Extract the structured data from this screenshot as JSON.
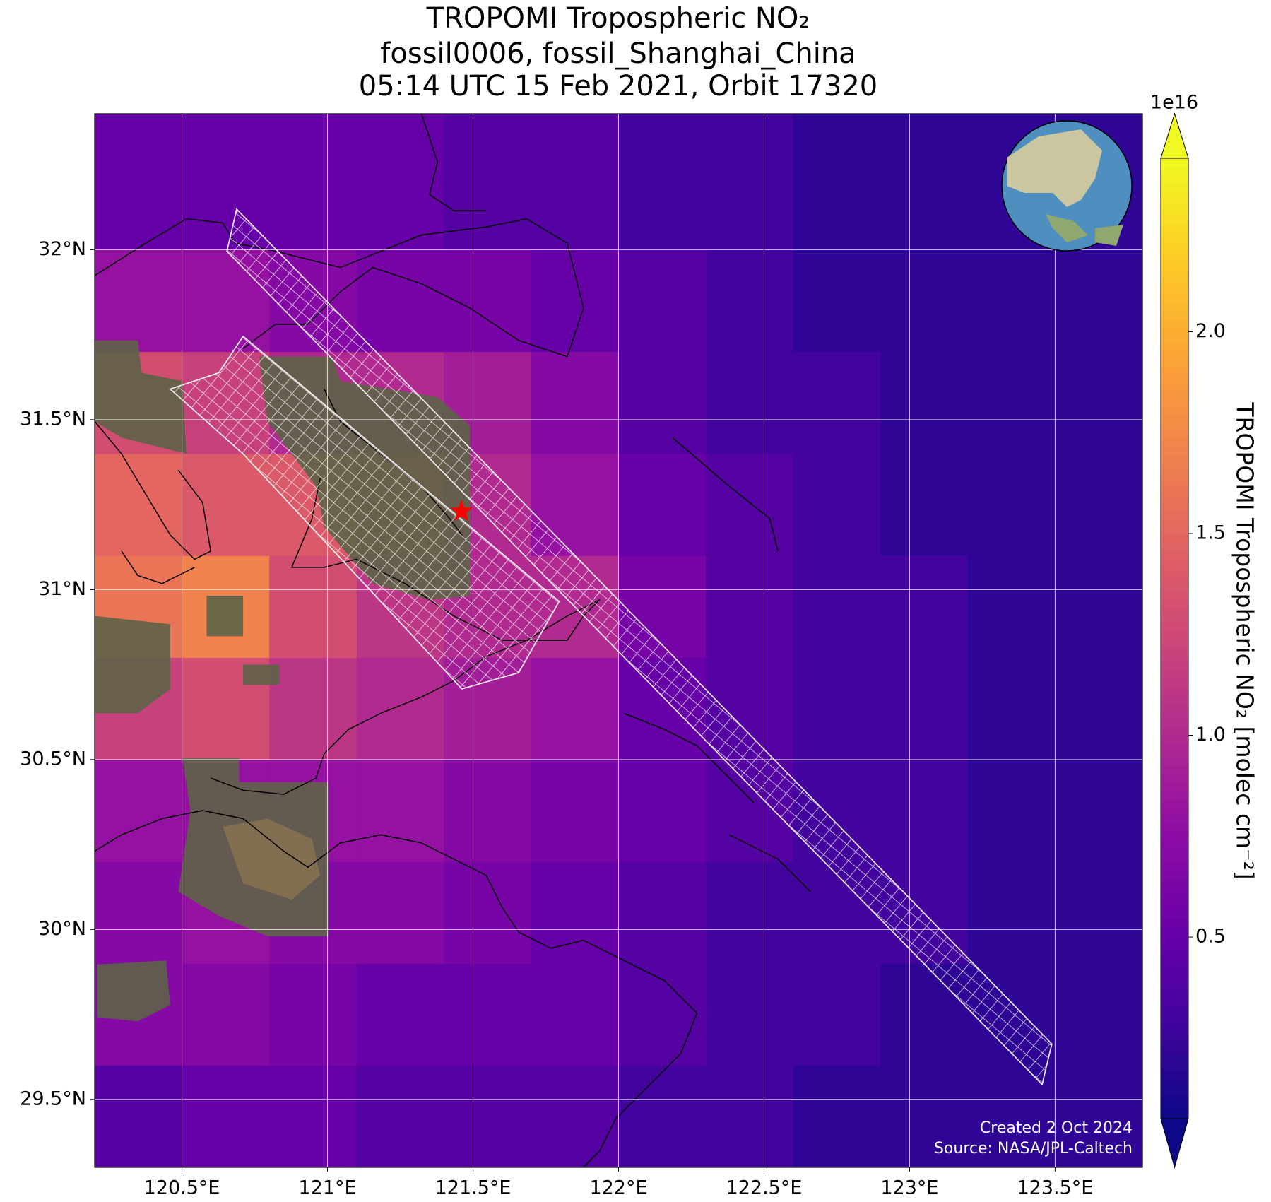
{
  "chart_data": {
    "type": "map",
    "title": [
      "TROPOMI Tropospheric NO₂",
      "fossil0006, fossil_Shanghai_China",
      "05:14 UTC 15 Feb 2021, Orbit 17320"
    ],
    "colormap": "plasma",
    "lon_edges": [
      120.2,
      120.5,
      120.8,
      121.1,
      121.4,
      121.7,
      122.0,
      122.3,
      122.6,
      122.9,
      123.2,
      123.5,
      123.8
    ],
    "lat_edges": [
      29.3,
      29.6,
      29.9,
      30.2,
      30.5,
      30.8,
      31.1,
      31.4,
      31.7,
      32.0,
      32.4
    ],
    "values": [
      [
        0.4,
        0.5,
        0.5,
        0.4,
        0.4,
        0.4,
        0.3,
        0.3,
        0.2,
        0.2,
        0.2,
        0.2
      ],
      [
        0.7,
        0.7,
        0.6,
        0.5,
        0.5,
        0.5,
        0.4,
        0.3,
        0.3,
        0.2,
        0.2,
        0.2
      ],
      [
        0.7,
        0.8,
        0.7,
        0.7,
        0.6,
        0.5,
        0.4,
        0.3,
        0.3,
        0.3,
        0.2,
        0.2
      ],
      [
        0.8,
        0.8,
        0.8,
        0.8,
        0.7,
        0.6,
        0.5,
        0.4,
        0.3,
        0.3,
        0.2,
        0.2
      ],
      [
        1.2,
        1.3,
        1.1,
        1.0,
        0.9,
        0.8,
        0.5,
        0.4,
        0.3,
        0.3,
        0.2,
        0.2
      ],
      [
        1.6,
        1.7,
        1.3,
        1.1,
        1.0,
        1.0,
        0.6,
        0.4,
        0.3,
        0.3,
        0.2,
        0.2
      ],
      [
        1.5,
        1.4,
        1.4,
        1.3,
        1.0,
        0.8,
        0.5,
        0.4,
        0.3,
        0.2,
        0.2,
        0.2
      ],
      [
        1.3,
        1.2,
        1.0,
        1.0,
        0.9,
        0.7,
        0.4,
        0.3,
        0.3,
        0.2,
        0.2,
        0.2
      ],
      [
        0.8,
        0.8,
        0.7,
        0.6,
        0.6,
        0.5,
        0.4,
        0.3,
        0.2,
        0.2,
        0.2,
        0.2
      ],
      [
        0.5,
        0.5,
        0.5,
        0.5,
        0.4,
        0.4,
        0.3,
        0.3,
        0.2,
        0.2,
        0.2,
        0.2
      ]
    ],
    "xlim": [
      120.2,
      123.8
    ],
    "ylim": [
      29.3,
      32.4
    ],
    "xticks": [
      {
        "value": 120.5,
        "label": "120.5°E"
      },
      {
        "value": 121,
        "label": "121°E"
      },
      {
        "value": 121.5,
        "label": "121.5°E"
      },
      {
        "value": 122,
        "label": "122°E"
      },
      {
        "value": 122.5,
        "label": "122.5°E"
      },
      {
        "value": 123,
        "label": "123°E"
      },
      {
        "value": 123.5,
        "label": "123.5°E"
      }
    ],
    "yticks": [
      {
        "value": 29.5,
        "label": "29.5°N"
      },
      {
        "value": 30,
        "label": "30°N"
      },
      {
        "value": 30.5,
        "label": "30.5°N"
      },
      {
        "value": 31,
        "label": "31°N"
      },
      {
        "value": 31.5,
        "label": "31.5°N"
      },
      {
        "value": 32,
        "label": "32°N"
      }
    ],
    "grid": true,
    "site": {
      "lon": 121.46,
      "lat": 31.23
    },
    "colorbar": {
      "label": "TROPOMI Tropospheric NO₂ [molec cm⁻²]",
      "offset_label": "1e16",
      "clim": [
        0.05,
        2.43
      ],
      "ticks": [
        0.5,
        {
          "value": 1,
          "label": "1.0"
        },
        1.5,
        {
          "value": 2,
          "label": "2.0"
        }
      ]
    },
    "footer": [
      "Created 2 Oct 2024",
      "Source: NASA/JPL-Caltech"
    ]
  }
}
